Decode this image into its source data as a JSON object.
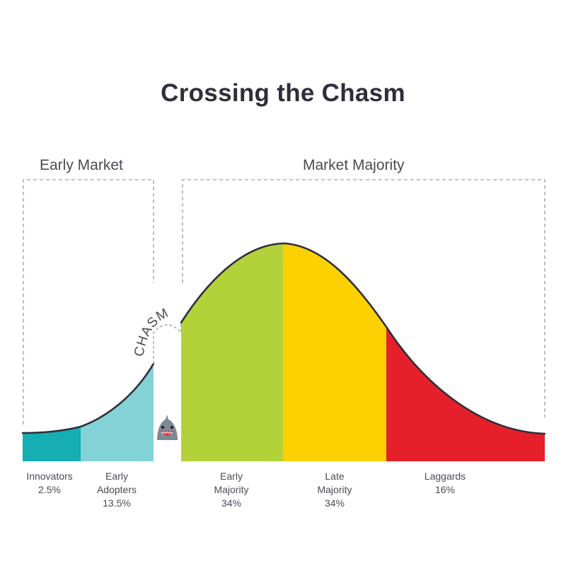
{
  "title": "Crossing the Chasm",
  "groups": {
    "early_market": "Early Market",
    "market_majority": "Market Majority"
  },
  "chasm_label": "CHASM",
  "segments": [
    {
      "name_line1": "Innovators",
      "name_line2": "",
      "percent": "2.5%",
      "color": "#14aeb3"
    },
    {
      "name_line1": "Early",
      "name_line2": "Adopters",
      "percent": "13.5%",
      "color": "#82d2d6"
    },
    {
      "name_line1": "Early",
      "name_line2": "Majority",
      "percent": "34%",
      "color": "#b3d23a"
    },
    {
      "name_line1": "Late",
      "name_line2": "Majority",
      "percent": "34%",
      "color": "#fdd000"
    },
    {
      "name_line1": "Laggards",
      "name_line2": "",
      "percent": "16%",
      "color": "#e6202a"
    }
  ],
  "colors": {
    "curve": "#2e2f3a",
    "dashed_bracket": "#b0b0b0",
    "shark": "#7d8a94"
  }
}
